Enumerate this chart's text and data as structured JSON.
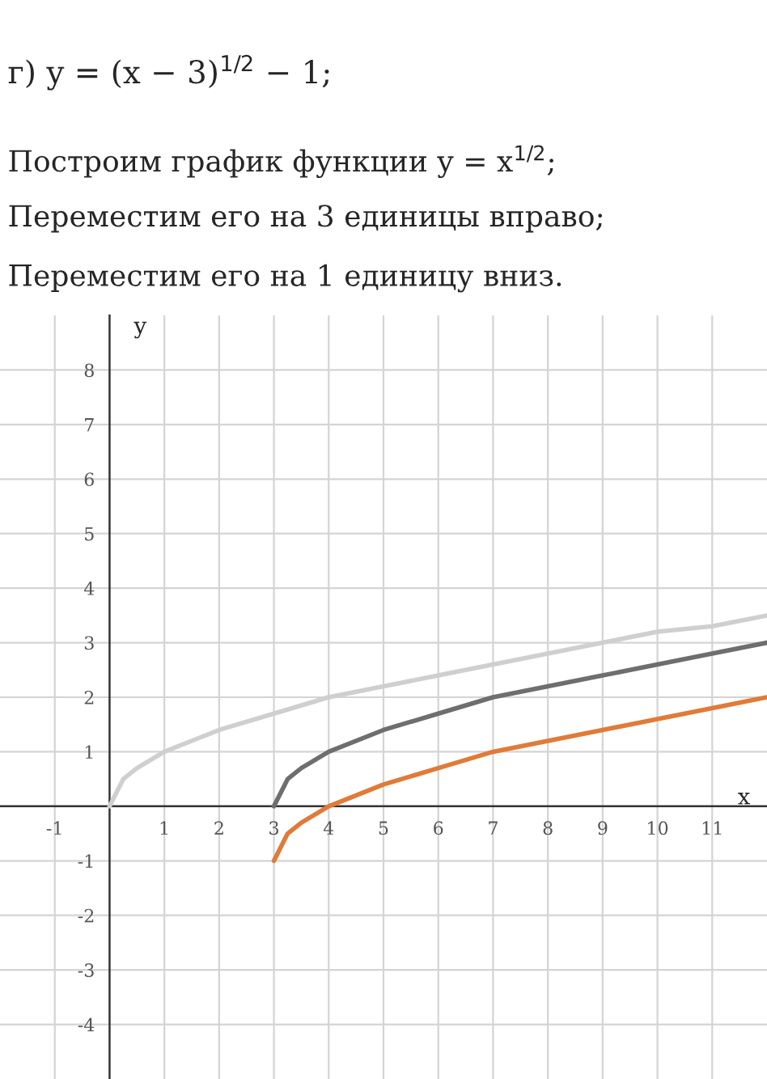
{
  "chart_data": {
    "type": "line",
    "title": "г) y = (x − 3)$^{1/2}$ − 1;",
    "annotations": [
      "Построим график функции y = x$^{1/2}$;",
      "Переместим его на 3 единицы вправо;",
      "Переместим его на 1 единицу вниз."
    ],
    "xlabel": "x",
    "ylabel": "y",
    "xlim": [
      -2,
      12
    ],
    "ylim": [
      -5,
      9
    ],
    "xticks": [
      -1,
      1,
      2,
      3,
      4,
      5,
      6,
      7,
      8,
      9,
      10,
      11
    ],
    "yticks": [
      -4,
      -3,
      -2,
      -1,
      1,
      2,
      3,
      4,
      5,
      6,
      7,
      8
    ],
    "grid": true,
    "series": [
      {
        "color": "#cfcfcf",
        "x": [
          0,
          0.25,
          0.5,
          1,
          2,
          3,
          4,
          5,
          6,
          7,
          8,
          9,
          10,
          11,
          12
        ],
        "values": [
          0,
          0.5,
          0.7,
          1,
          1.4,
          1.7,
          2,
          2.2,
          2.4,
          2.6,
          2.8,
          3,
          3.2,
          3.3,
          3.5
        ]
      },
      {
        "color": "#6e6e6e",
        "x": [
          3,
          3.25,
          3.5,
          4,
          5,
          6,
          7,
          8,
          9,
          10,
          11,
          12
        ],
        "values": [
          0,
          0.5,
          0.7,
          1,
          1.4,
          1.7,
          2,
          2.2,
          2.4,
          2.6,
          2.8,
          3
        ]
      },
      {
        "color": "#e07b39",
        "x": [
          3,
          3.25,
          3.5,
          4,
          5,
          6,
          7,
          8,
          9,
          10,
          11,
          12
        ],
        "values": [
          -1,
          -0.5,
          -0.3,
          0,
          0.4,
          0.7,
          1,
          1.2,
          1.4,
          1.6,
          1.8,
          2
        ]
      }
    ]
  }
}
